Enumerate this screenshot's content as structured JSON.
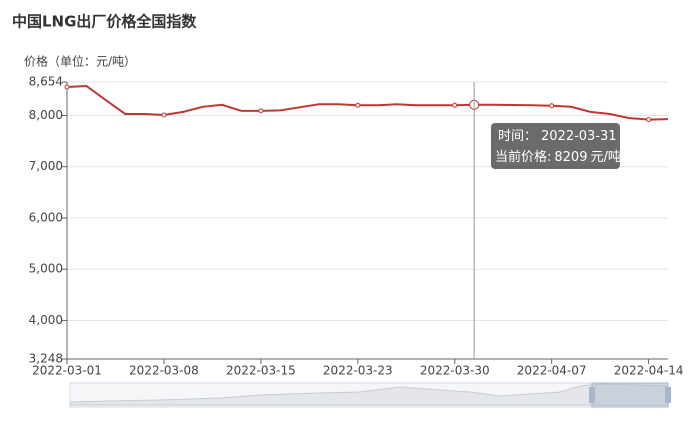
{
  "chart_data": {
    "type": "line",
    "title": "中国LNG出厂价格全国指数",
    "y_label": "价格（单位：元/吨）",
    "categories": [
      "2022-03-01",
      null,
      null,
      null,
      null,
      "2022-03-08",
      null,
      null,
      null,
      null,
      "2022-03-15",
      null,
      null,
      null,
      null,
      "2022-03-23",
      null,
      null,
      null,
      null,
      "2022-03-30",
      "2022-03-31",
      null,
      null,
      null,
      "2022-04-07",
      null,
      null,
      null,
      null,
      "2022-04-14",
      null
    ],
    "series": [
      {
        "name": "当前价格",
        "color": "#c23531",
        "values": [
          8556,
          8576,
          8300,
          8030,
          8030,
          8010,
          8070,
          8170,
          8210,
          8090,
          8090,
          8100,
          8160,
          8220,
          8220,
          8200,
          8200,
          8220,
          8200,
          8200,
          8200,
          8209,
          8209,
          8205,
          8200,
          8190,
          8170,
          8070,
          8030,
          7950,
          7920,
          7930
        ]
      }
    ],
    "ylim": [
      3248,
      8654
    ],
    "yticks": [
      {
        "value": 3248,
        "label": "3,248"
      },
      {
        "value": 4000,
        "label": "4,000"
      },
      {
        "value": 5000,
        "label": "5,000"
      },
      {
        "value": 6000,
        "label": "6,000"
      },
      {
        "value": 7000,
        "label": "7,000"
      },
      {
        "value": 8000,
        "label": "8,000"
      },
      {
        "value": 8654,
        "label": "8,654"
      }
    ],
    "grid": true,
    "tooltip": {
      "time_label": "时间：",
      "price_label": "当前价格:",
      "unit": "元/吨"
    }
  }
}
